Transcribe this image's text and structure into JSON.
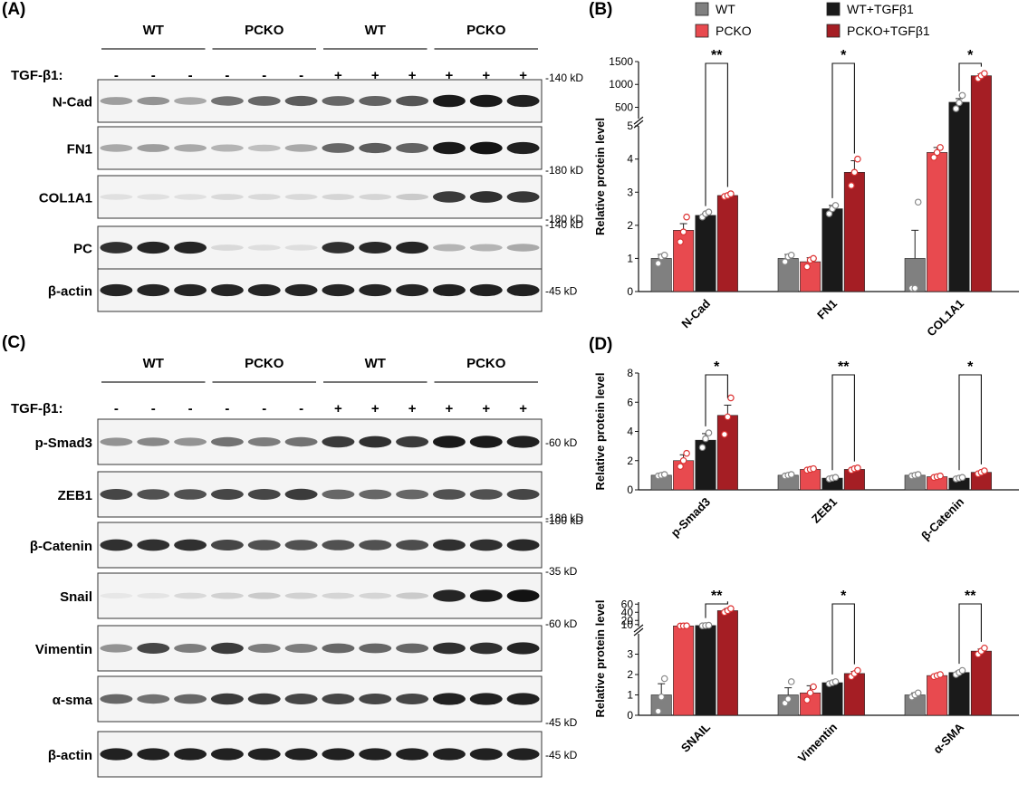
{
  "panels": {
    "a": "(A)",
    "b": "(B)",
    "c": "(C)",
    "d": "(D)"
  },
  "groups": [
    "WT",
    "PCKO",
    "WT",
    "PCKO"
  ],
  "treatment_label": "TGF-β1:",
  "treatment_signs": [
    "-",
    "-",
    "-",
    "-",
    "-",
    "-",
    "+",
    "+",
    "+",
    "+",
    "+",
    "+"
  ],
  "blot_a": [
    {
      "label": "N-Cad",
      "mw_right": "-140 kD",
      "mw_pos": "top",
      "intensity": [
        0.35,
        0.4,
        0.3,
        0.55,
        0.6,
        0.65,
        0.6,
        0.62,
        0.68,
        0.95,
        0.95,
        0.92
      ]
    },
    {
      "label": "FN1",
      "mw_right": "-180 kD",
      "mw_pos": "bottom",
      "intensity": [
        0.3,
        0.35,
        0.3,
        0.25,
        0.2,
        0.3,
        0.6,
        0.65,
        0.62,
        0.95,
        0.98,
        0.92
      ]
    },
    {
      "label": "COL1A1",
      "mw_right": "-180 kD",
      "mw_pos": "bottom",
      "intensity": [
        0.05,
        0.05,
        0.05,
        0.08,
        0.08,
        0.08,
        0.1,
        0.1,
        0.15,
        0.8,
        0.85,
        0.82
      ]
    },
    {
      "label": "PC",
      "mw_right": "-140 kD",
      "mw_pos": "top",
      "intensity": [
        0.85,
        0.9,
        0.9,
        0.08,
        0.06,
        0.06,
        0.85,
        0.88,
        0.9,
        0.25,
        0.25,
        0.3
      ]
    },
    {
      "label": "β-actin",
      "mw_right": "-45 kD",
      "mw_pos": "mid",
      "intensity": [
        0.9,
        0.9,
        0.9,
        0.9,
        0.9,
        0.9,
        0.9,
        0.9,
        0.9,
        0.92,
        0.92,
        0.92
      ]
    }
  ],
  "blot_c": [
    {
      "label": "p-Smad3",
      "mw_right": "-60 kD",
      "mw_pos": "mid",
      "intensity": [
        0.4,
        0.45,
        0.4,
        0.55,
        0.5,
        0.55,
        0.8,
        0.85,
        0.8,
        0.95,
        0.95,
        0.92
      ]
    },
    {
      "label": "ZEB1",
      "mw_right": "-180 kD",
      "mw_pos": "bottom",
      "intensity": [
        0.75,
        0.7,
        0.7,
        0.75,
        0.75,
        0.8,
        0.6,
        0.6,
        0.6,
        0.7,
        0.7,
        0.75
      ]
    },
    {
      "label": "β-Catenin",
      "mw_right": "-100 kD",
      "mw_pos": "top",
      "intensity": [
        0.85,
        0.85,
        0.85,
        0.75,
        0.7,
        0.7,
        0.7,
        0.7,
        0.72,
        0.85,
        0.85,
        0.88
      ]
    },
    {
      "label": "Snail",
      "mw_right": "-35 kD",
      "mw_pos": "top",
      "intensity": [
        0.02,
        0.03,
        0.08,
        0.12,
        0.15,
        0.12,
        0.1,
        0.1,
        0.15,
        0.9,
        0.95,
        0.98
      ]
    },
    {
      "label": "Vimentin",
      "mw_right": "-60 kD",
      "mw_pos": "top",
      "intensity": [
        0.4,
        0.75,
        0.5,
        0.8,
        0.5,
        0.5,
        0.6,
        0.6,
        0.6,
        0.85,
        0.85,
        0.9
      ]
    },
    {
      "label": "α-sma",
      "mw_right": "-45 kD",
      "mw_pos": "bottom",
      "intensity": [
        0.6,
        0.55,
        0.6,
        0.8,
        0.8,
        0.75,
        0.75,
        0.75,
        0.75,
        0.92,
        0.92,
        0.92
      ]
    },
    {
      "label": "β-actin",
      "mw_right": "-45 kD",
      "mw_pos": "mid",
      "intensity": [
        0.92,
        0.92,
        0.92,
        0.92,
        0.92,
        0.92,
        0.92,
        0.92,
        0.92,
        0.92,
        0.92,
        0.92
      ]
    }
  ],
  "colors": {
    "WT": "#808080",
    "PCKO": "#e84a4f",
    "WT+TGFβ1": "#1a1a1a",
    "PCKO+TGFβ1": "#a51e24"
  },
  "chart_data": [
    {
      "type": "bar",
      "panel": "B",
      "ylabel": "Relative protein level",
      "legend": [
        "WT",
        "PCKO",
        "WT+TGFβ1",
        "PCKO+TGFβ1"
      ],
      "categories": [
        "N-Cad",
        "FN1",
        "COL1A1"
      ],
      "broken_axis": {
        "lower": [
          0,
          5
        ],
        "upper": [
          250,
          1500
        ],
        "upper_ticks": [
          500,
          1000,
          1500
        ],
        "lower_ticks": [
          0,
          1,
          2,
          3,
          4,
          5
        ]
      },
      "series": [
        {
          "name": "WT",
          "values": [
            1.0,
            1.0,
            1.0
          ],
          "errors": [
            0.12,
            0.12,
            0.85
          ],
          "points": [
            [
              0.85,
              1.05,
              1.1
            ],
            [
              0.9,
              1.05,
              1.1
            ],
            [
              0.1,
              0.1,
              2.7
            ]
          ]
        },
        {
          "name": "PCKO",
          "values": [
            1.85,
            0.9,
            4.2
          ],
          "errors": [
            0.2,
            0.12,
            0.15
          ],
          "points": [
            [
              1.5,
              1.8,
              2.25
            ],
            [
              0.75,
              0.95,
              1.0
            ],
            [
              4.05,
              4.2,
              4.35
            ]
          ]
        },
        {
          "name": "WT+TGFβ1",
          "values": [
            2.3,
            2.5,
            610
          ],
          "errors": [
            0.06,
            0.1,
            80
          ],
          "points": [
            [
              2.25,
              2.35,
              2.4
            ],
            [
              2.35,
              2.5,
              2.6
            ],
            [
              470,
              600,
              760
            ]
          ]
        },
        {
          "name": "PCKO+TGFβ1",
          "values": [
            2.9,
            3.6,
            1190
          ],
          "errors": [
            0.04,
            0.35,
            40
          ],
          "points": [
            [
              2.87,
              2.9,
              2.95
            ],
            [
              3.2,
              3.6,
              4.0
            ],
            [
              1130,
              1190,
              1240
            ]
          ]
        }
      ],
      "significance": [
        {
          "category": "N-Cad",
          "label": "**"
        },
        {
          "category": "FN1",
          "label": "*"
        },
        {
          "category": "COL1A1",
          "label": "*"
        }
      ]
    },
    {
      "type": "bar",
      "panel": "D-top",
      "ylabel": "Relative protein level",
      "categories": [
        "p-Smad3",
        "ZEB1",
        "β-Catenin"
      ],
      "ylim": [
        0,
        8
      ],
      "yticks": [
        0,
        2,
        4,
        6,
        8
      ],
      "series": [
        {
          "name": "WT",
          "values": [
            1.0,
            1.0,
            1.0
          ],
          "errors": [
            0.05,
            0.05,
            0.05
          ],
          "points": [
            [
              0.95,
              1.0,
              1.05
            ],
            [
              0.95,
              1.0,
              1.05
            ],
            [
              0.95,
              1.0,
              1.05
            ]
          ]
        },
        {
          "name": "PCKO",
          "values": [
            2.0,
            1.4,
            0.9
          ],
          "errors": [
            0.4,
            0.05,
            0.05
          ],
          "points": [
            [
              1.6,
              2.0,
              2.5
            ],
            [
              1.35,
              1.4,
              1.45
            ],
            [
              0.85,
              0.9,
              0.95
            ]
          ]
        },
        {
          "name": "WT+TGFβ1",
          "values": [
            3.4,
            0.8,
            0.8
          ],
          "errors": [
            0.45,
            0.05,
            0.05
          ],
          "points": [
            [
              2.9,
              3.5,
              3.9
            ],
            [
              0.75,
              0.8,
              0.85
            ],
            [
              0.75,
              0.8,
              0.85
            ]
          ]
        },
        {
          "name": "PCKO+TGFβ1",
          "values": [
            5.1,
            1.4,
            1.2
          ],
          "errors": [
            0.7,
            0.05,
            0.05
          ],
          "points": [
            [
              3.8,
              5.0,
              6.3
            ],
            [
              1.35,
              1.45,
              1.5
            ],
            [
              1.1,
              1.2,
              1.3
            ]
          ]
        }
      ],
      "significance": [
        {
          "category": "p-Smad3",
          "label": "*"
        },
        {
          "category": "ZEB1",
          "label": "**"
        },
        {
          "category": "β-Catenin",
          "label": "*"
        }
      ]
    },
    {
      "type": "bar",
      "panel": "D-bottom",
      "ylabel": "Relative protein level",
      "categories": [
        "SNAIL",
        "Vimentin",
        "α-SMA"
      ],
      "broken_axis": {
        "lower": [
          0,
          4
        ],
        "upper": [
          5,
          65
        ],
        "upper_ticks": [
          10,
          20,
          40,
          60
        ],
        "lower_ticks": [
          0,
          1,
          2,
          3
        ]
      },
      "series": [
        {
          "name": "WT",
          "values": [
            1.0,
            1.0,
            1.0
          ],
          "errors": [
            0.55,
            0.35,
            0.1
          ],
          "points": [
            [
              0.2,
              0.9,
              1.8
            ],
            [
              0.6,
              0.8,
              1.65
            ],
            [
              0.9,
              1.0,
              1.1
            ]
          ]
        },
        {
          "name": "PCKO",
          "values": [
            6.5,
            1.1,
            1.95
          ],
          "errors": [
            0.3,
            0.35,
            0.05
          ],
          "points": [
            [
              6.3,
              6.5,
              6.8
            ],
            [
              0.75,
              1.1,
              1.4
            ],
            [
              1.9,
              1.95,
              2.0
            ]
          ]
        },
        {
          "name": "WT+TGFβ1",
          "values": [
            7.5,
            1.6,
            2.1
          ],
          "errors": [
            0.6,
            0.05,
            0.07
          ],
          "points": [
            [
              6.8,
              7.5,
              8.1
            ],
            [
              1.55,
              1.6,
              1.65
            ],
            [
              2.0,
              2.1,
              2.2
            ]
          ]
        },
        {
          "name": "PCKO+TGFβ1",
          "values": [
            44,
            2.05,
            3.15
          ],
          "errors": [
            5,
            0.1,
            0.1
          ],
          "points": [
            [
              40,
              44,
              49
            ],
            [
              1.9,
              2.05,
              2.2
            ],
            [
              3.0,
              3.15,
              3.3
            ]
          ]
        }
      ],
      "significance": [
        {
          "category": "SNAIL",
          "label": "**"
        },
        {
          "category": "Vimentin",
          "label": "*"
        },
        {
          "category": "α-SMA",
          "label": "**"
        }
      ]
    }
  ]
}
